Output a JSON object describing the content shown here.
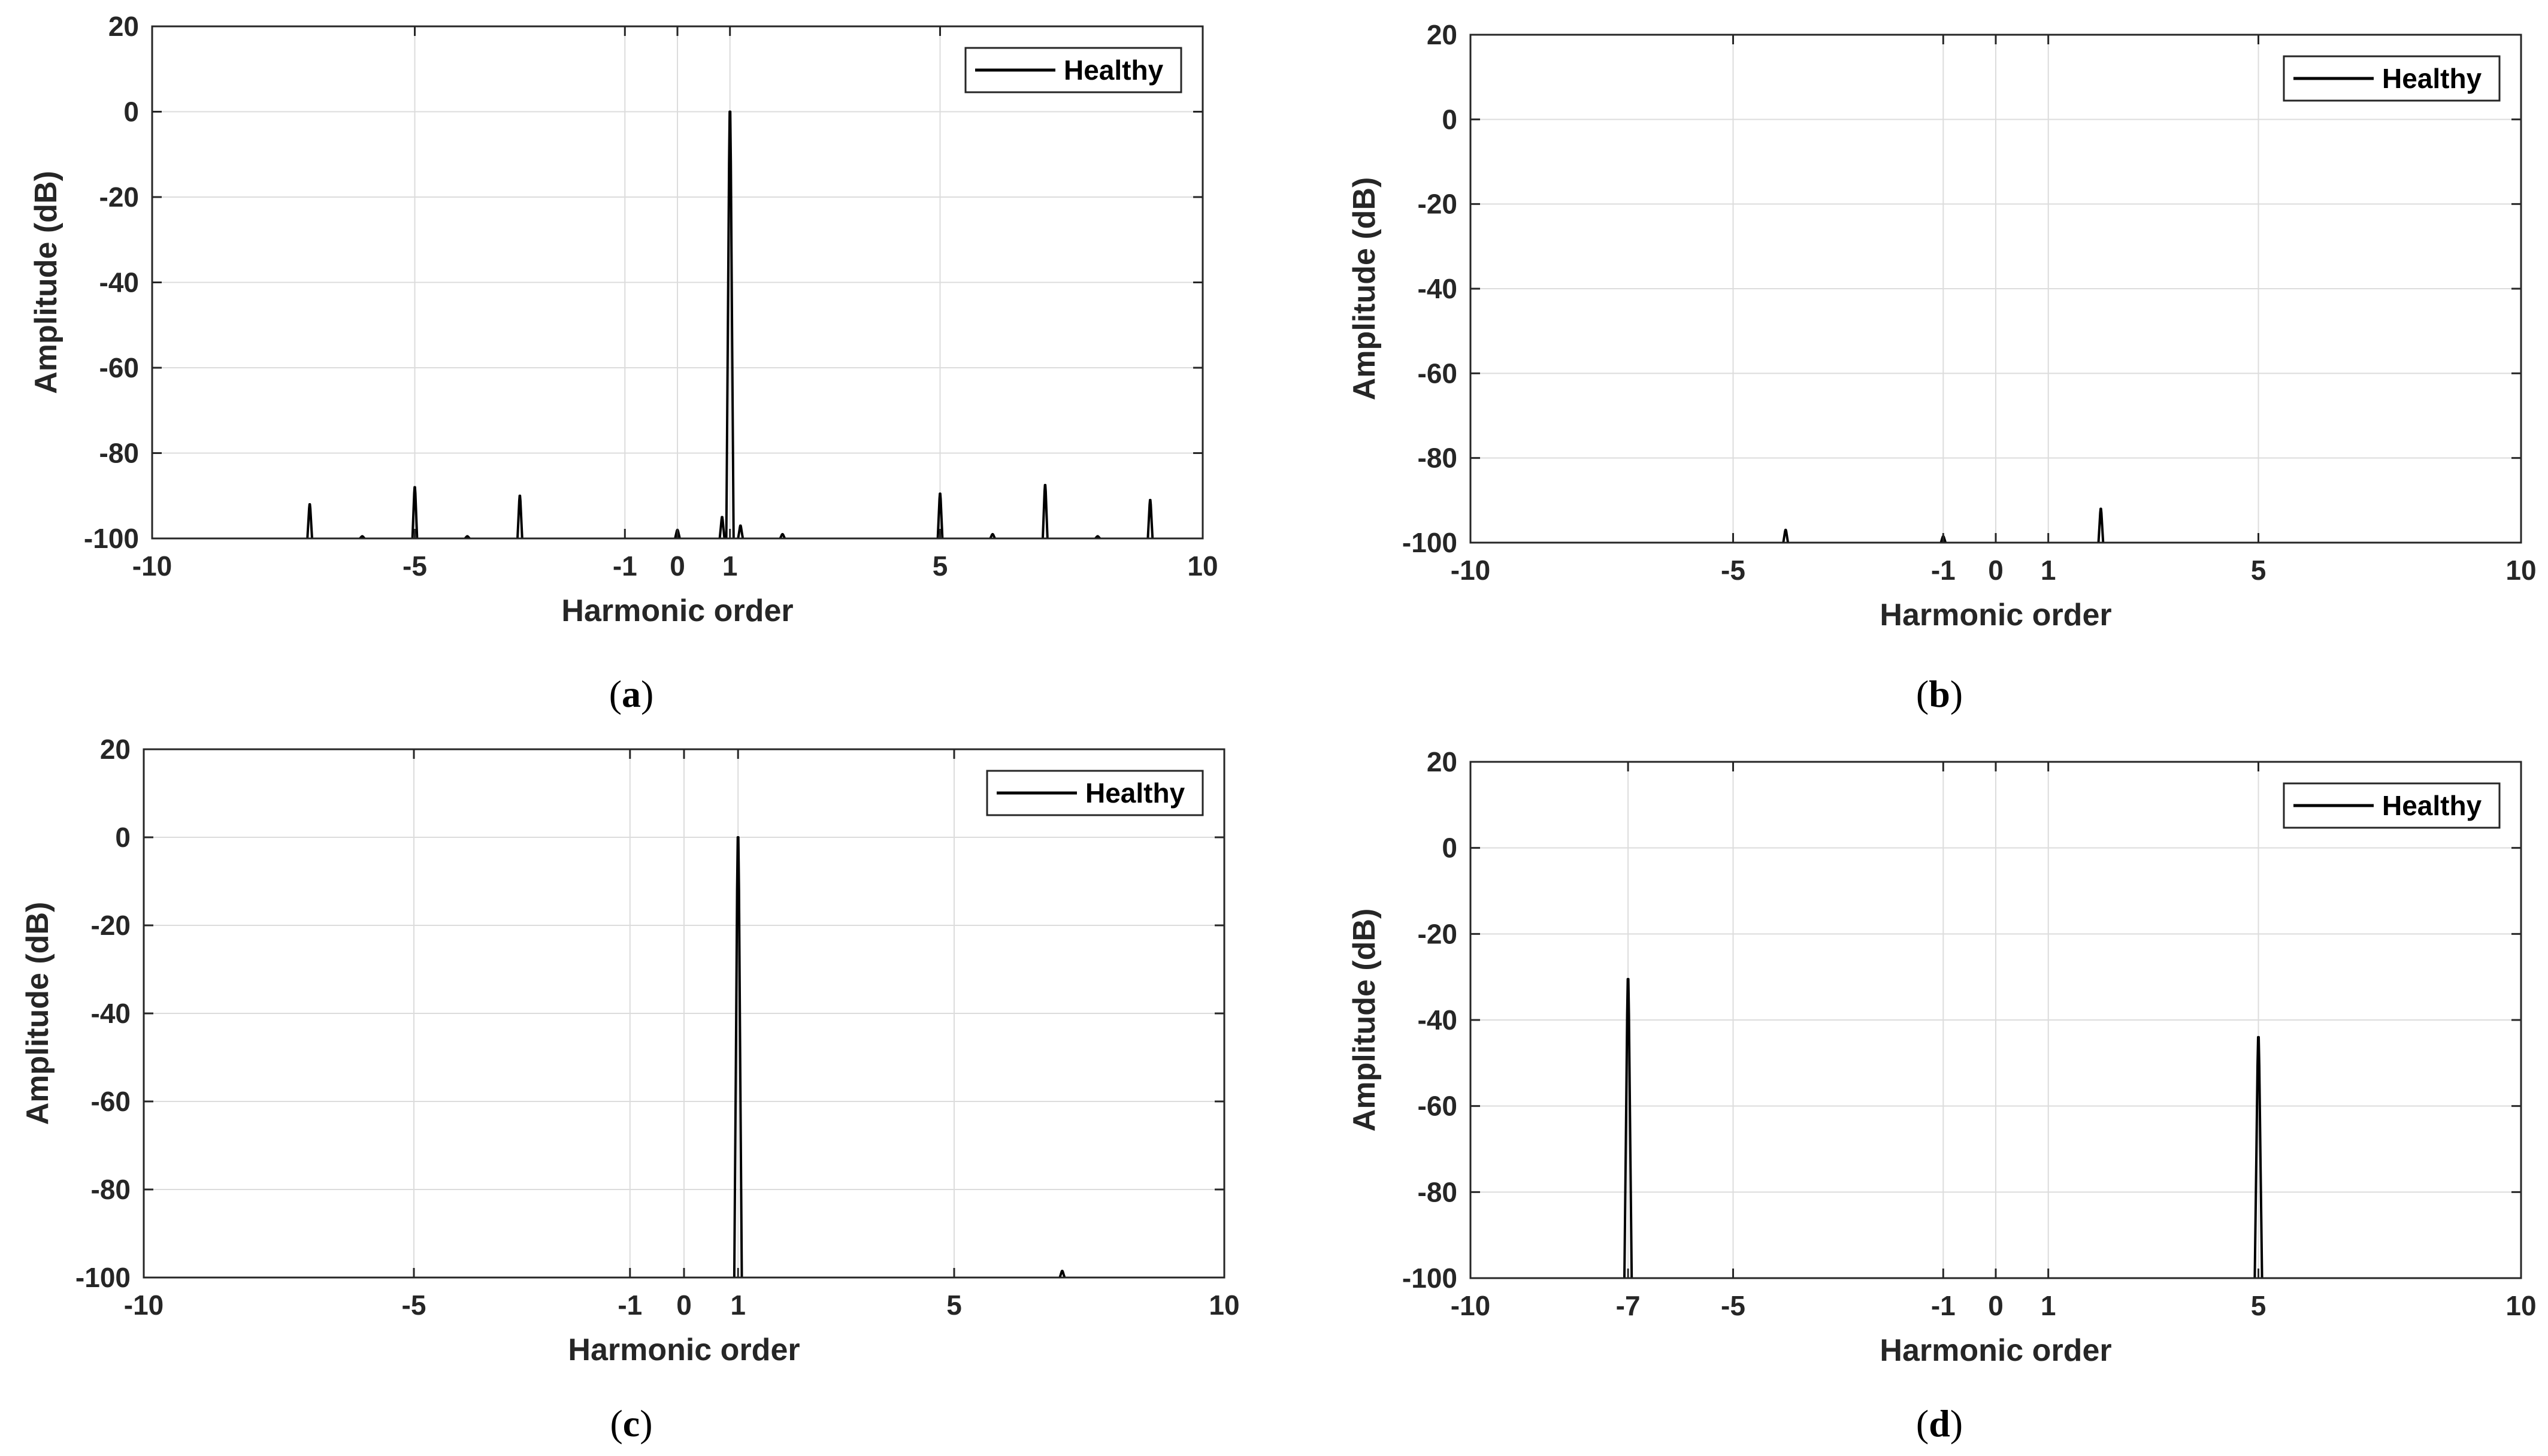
{
  "chart_data": [
    {
      "type": "line",
      "panel_label": "a",
      "xlabel": "Harmonic order",
      "ylabel": "Amplitude (dB)",
      "xlim": [
        -10,
        10
      ],
      "ylim": [
        -100,
        20
      ],
      "xticks": [
        -10,
        -5,
        -1,
        0,
        1,
        5,
        10
      ],
      "yticks": [
        20,
        0,
        -20,
        -40,
        -60,
        -80,
        -100
      ],
      "grid": true,
      "legend": {
        "label": "Healthy",
        "position": "top-right"
      },
      "series": [
        {
          "name": "Healthy",
          "peaks": [
            {
              "x": -7,
              "y": -92
            },
            {
              "x": -6,
              "y": -99.5
            },
            {
              "x": -5,
              "y": -88
            },
            {
              "x": -4,
              "y": -99.5
            },
            {
              "x": -3,
              "y": -90
            },
            {
              "x": 0,
              "y": -98
            },
            {
              "x": 0.85,
              "y": -95
            },
            {
              "x": 1,
              "y": 0
            },
            {
              "x": 1.2,
              "y": -97
            },
            {
              "x": 2,
              "y": -99
            },
            {
              "x": 5,
              "y": -89.5
            },
            {
              "x": 6,
              "y": -99
            },
            {
              "x": 7,
              "y": -87.5
            },
            {
              "x": 8,
              "y": -99.5
            },
            {
              "x": 9,
              "y": -91
            }
          ]
        }
      ]
    },
    {
      "type": "line",
      "panel_label": "b",
      "xlabel": "Harmonic order",
      "ylabel": "Amplitude (dB)",
      "xlim": [
        -10,
        10
      ],
      "ylim": [
        -100,
        20
      ],
      "xticks": [
        -10,
        -5,
        -1,
        0,
        1,
        5,
        10
      ],
      "yticks": [
        20,
        0,
        -20,
        -40,
        -60,
        -80,
        -100
      ],
      "grid": true,
      "legend": {
        "label": "Healthy",
        "position": "top-right"
      },
      "series": [
        {
          "name": "Healthy",
          "peaks": [
            {
              "x": -4,
              "y": -97
            },
            {
              "x": -1,
              "y": -98.5
            },
            {
              "x": 2,
              "y": -92
            }
          ]
        }
      ]
    },
    {
      "type": "line",
      "panel_label": "c",
      "xlabel": "Harmonic order",
      "ylabel": "Amplitude (dB)",
      "xlim": [
        -10,
        10
      ],
      "ylim": [
        -100,
        20
      ],
      "xticks": [
        -10,
        -5,
        -1,
        0,
        1,
        5,
        10
      ],
      "yticks": [
        20,
        0,
        -20,
        -40,
        -60,
        -80,
        -100
      ],
      "grid": true,
      "legend": {
        "label": "Healthy",
        "position": "top-right"
      },
      "series": [
        {
          "name": "Healthy",
          "peaks": [
            {
              "x": 1,
              "y": 0
            },
            {
              "x": 7,
              "y": -98.5
            }
          ]
        }
      ]
    },
    {
      "type": "line",
      "panel_label": "d",
      "xlabel": "Harmonic order",
      "ylabel": "Amplitude (dB)",
      "xlim": [
        -10,
        10
      ],
      "ylim": [
        -100,
        20
      ],
      "xticks": [
        -10,
        -7,
        -5,
        -1,
        0,
        1,
        5,
        10
      ],
      "yticks": [
        20,
        0,
        -20,
        -40,
        -60,
        -80,
        -100
      ],
      "grid": true,
      "legend": {
        "label": "Healthy",
        "position": "top-right"
      },
      "series": [
        {
          "name": "Healthy",
          "peaks": [
            {
              "x": -7,
              "y": -30.5
            },
            {
              "x": 5,
              "y": -44
            }
          ]
        }
      ]
    }
  ]
}
